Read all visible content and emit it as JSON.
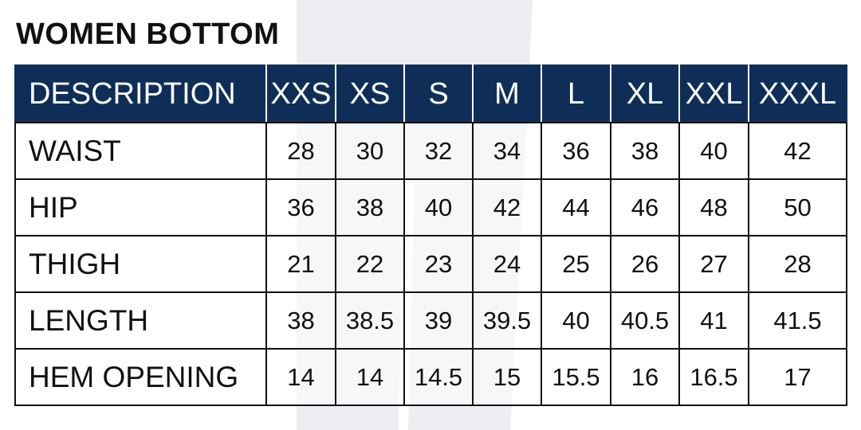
{
  "title": "WOMEN BOTTOM",
  "table": {
    "headers": [
      "DESCRIPTION",
      "XXS",
      "XS",
      "S",
      "M",
      "L",
      "XL",
      "XXL",
      "XXXL"
    ],
    "rows": [
      {
        "label": "WAIST",
        "values": [
          "28",
          "30",
          "32",
          "34",
          "36",
          "38",
          "40",
          "42"
        ]
      },
      {
        "label": "HIP",
        "values": [
          "36",
          "38",
          "40",
          "42",
          "44",
          "46",
          "48",
          "50"
        ]
      },
      {
        "label": "THIGH",
        "values": [
          "21",
          "22",
          "23",
          "24",
          "25",
          "26",
          "27",
          "28"
        ]
      },
      {
        "label": "LENGTH",
        "values": [
          "38",
          "38.5",
          "39",
          "39.5",
          "40",
          "40.5",
          "41",
          "41.5"
        ]
      },
      {
        "label": "HEM OPENING",
        "values": [
          "14",
          "14",
          "14.5",
          "15",
          "15.5",
          "16",
          "16.5",
          "17"
        ]
      }
    ]
  },
  "colors": {
    "header_bg": "#0f2e57",
    "header_text": "#ffffff",
    "watermark": "#eceef1"
  },
  "watermark_icon": "pants-silhouette-icon"
}
